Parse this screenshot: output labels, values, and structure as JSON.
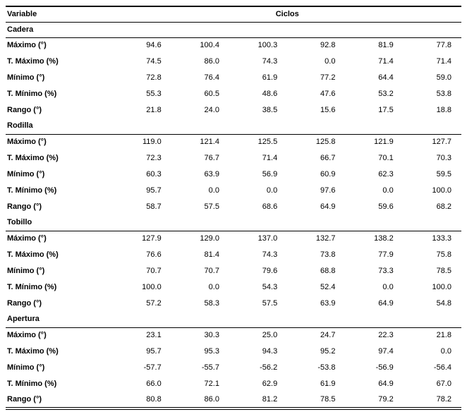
{
  "table": {
    "header": {
      "variable": "Variable",
      "ciclos": "Ciclos"
    },
    "sections": [
      {
        "name": "Cadera",
        "rows": [
          {
            "label": "Máximo (°)",
            "values": [
              "94.6",
              "100.4",
              "100.3",
              "92.8",
              "81.9",
              "77.8"
            ]
          },
          {
            "label": "T. Máximo (%)",
            "values": [
              "74.5",
              "86.0",
              "74.3",
              "0.0",
              "71.4",
              "71.4"
            ]
          },
          {
            "label": "Mínimo (°)",
            "values": [
              "72.8",
              "76.4",
              "61.9",
              "77.2",
              "64.4",
              "59.0"
            ]
          },
          {
            "label": "T. Mínimo (%)",
            "values": [
              "55.3",
              "60.5",
              "48.6",
              "47.6",
              "53.2",
              "53.8"
            ]
          },
          {
            "label": "Rango (°)",
            "values": [
              "21.8",
              "24.0",
              "38.5",
              "15.6",
              "17.5",
              "18.8"
            ]
          }
        ]
      },
      {
        "name": "Rodilla",
        "rows": [
          {
            "label": "Máximo (°)",
            "values": [
              "119.0",
              "121.4",
              "125.5",
              "125.8",
              "121.9",
              "127.7"
            ]
          },
          {
            "label": "T. Máximo (%)",
            "values": [
              "72.3",
              "76.7",
              "71.4",
              "66.7",
              "70.1",
              "70.3"
            ]
          },
          {
            "label": "Mínimo (°)",
            "values": [
              "60.3",
              "63.9",
              "56.9",
              "60.9",
              "62.3",
              "59.5"
            ]
          },
          {
            "label": "T. Mínimo (%)",
            "values": [
              "95.7",
              "0.0",
              "0.0",
              "97.6",
              "0.0",
              "100.0"
            ]
          },
          {
            "label": "Rango (°)",
            "values": [
              "58.7",
              "57.5",
              "68.6",
              "64.9",
              "59.6",
              "68.2"
            ]
          }
        ]
      },
      {
        "name": "Tobillo",
        "rows": [
          {
            "label": "Máximo (°)",
            "values": [
              "127.9",
              "129.0",
              "137.0",
              "132.7",
              "138.2",
              "133.3"
            ]
          },
          {
            "label": "T. Máximo (%)",
            "values": [
              "76.6",
              "81.4",
              "74.3",
              "73.8",
              "77.9",
              "75.8"
            ]
          },
          {
            "label": "Mínimo (°)",
            "values": [
              "70.7",
              "70.7",
              "79.6",
              "68.8",
              "73.3",
              "78.5"
            ]
          },
          {
            "label": "T. Mínimo (%)",
            "values": [
              "100.0",
              "0.0",
              "54.3",
              "52.4",
              "0.0",
              "100.0"
            ]
          },
          {
            "label": "Rango (°)",
            "values": [
              "57.2",
              "58.3",
              "57.5",
              "63.9",
              "64.9",
              "54.8"
            ]
          }
        ]
      },
      {
        "name": "Apertura",
        "rows": [
          {
            "label": "Máximo (°)",
            "values": [
              "23.1",
              "30.3",
              "25.0",
              "24.7",
              "22.3",
              "21.8"
            ]
          },
          {
            "label": "T. Máximo (%)",
            "values": [
              "95.7",
              "95.3",
              "94.3",
              "95.2",
              "97.4",
              "0.0"
            ]
          },
          {
            "label": "Mínimo (°)",
            "values": [
              "-57.7",
              "-55.7",
              "-56.2",
              "-53.8",
              "-56.9",
              "-56.4"
            ]
          },
          {
            "label": "T. Mínimo (%)",
            "values": [
              "66.0",
              "72.1",
              "62.9",
              "61.9",
              "64.9",
              "67.0"
            ]
          },
          {
            "label": "Rango (°)",
            "values": [
              "80.8",
              "86.0",
              "81.2",
              "78.5",
              "79.2",
              "78.2"
            ]
          }
        ]
      }
    ]
  }
}
